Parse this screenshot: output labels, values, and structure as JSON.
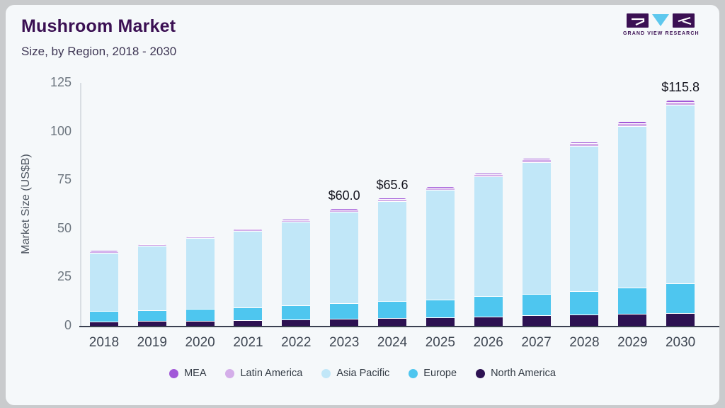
{
  "header": {
    "title": "Mushroom Market",
    "subtitle": "Size, by Region, 2018 - 2030"
  },
  "logo": {
    "name": "GRAND VIEW RESEARCH"
  },
  "colors": {
    "frame_bg": "#c9cbcd",
    "card_bg": "#f5f8fa",
    "title": "#3b1053",
    "subtitle": "#3e3654",
    "axis_tick_text": "#6e7780",
    "x_label_text": "#3f4753",
    "y_axis_line": "#d9dee3",
    "x_axis_line": "#3a4050",
    "annotation_text": "#14141e",
    "legend_text": "#333b45",
    "logo_purple": "#3b1053",
    "logo_blue": "#5ec8ee"
  },
  "chart_data": {
    "type": "bar",
    "stacked": true,
    "title": "Mushroom Market Size, by Region, 2018 - 2030",
    "xlabel": "",
    "ylabel": "Market Size (US$B)",
    "ylim": [
      0,
      125
    ],
    "yticks": [
      0,
      25,
      50,
      75,
      100,
      125
    ],
    "grid": false,
    "legend_position": "bottom",
    "categories": [
      "2018",
      "2019",
      "2020",
      "2021",
      "2022",
      "2023",
      "2024",
      "2025",
      "2026",
      "2027",
      "2028",
      "2029",
      "2030"
    ],
    "series": [
      {
        "name": "MEA",
        "color": "#a158d8",
        "values": [
          0.2,
          0.2,
          0.2,
          0.2,
          0.3,
          0.3,
          0.3,
          0.4,
          0.4,
          0.5,
          0.5,
          0.6,
          0.6
        ]
      },
      {
        "name": "Latin America",
        "color": "#d4aee9",
        "values": [
          0.6,
          0.7,
          0.7,
          0.8,
          0.8,
          0.9,
          1.0,
          1.0,
          1.1,
          1.2,
          1.3,
          1.5,
          1.4
        ]
      },
      {
        "name": "Asia Pacific",
        "color": "#c1e7f8",
        "values": [
          29.9,
          33.0,
          36.2,
          39.5,
          43.0,
          47.1,
          51.7,
          56.6,
          61.7,
          67.8,
          74.8,
          83.2,
          91.9
        ]
      },
      {
        "name": "Europe",
        "color": "#4ec6ef",
        "values": [
          5.5,
          5.6,
          6.2,
          6.6,
          7.2,
          8.0,
          8.6,
          9.1,
          10.5,
          11.0,
          12.1,
          13.5,
          15.3
        ]
      },
      {
        "name": "North America",
        "color": "#2d1252",
        "values": [
          2.3,
          2.5,
          2.7,
          2.9,
          3.2,
          3.7,
          4.0,
          4.4,
          4.8,
          5.5,
          5.8,
          6.2,
          6.6
        ]
      }
    ],
    "stack_order_bottom_to_top": [
      "North America",
      "Europe",
      "Asia Pacific",
      "Latin America",
      "MEA"
    ],
    "totals": [
      38.5,
      42.0,
      46.0,
      50.0,
      54.5,
      60.0,
      65.6,
      71.5,
      78.5,
      86.0,
      94.5,
      105.0,
      115.8
    ],
    "annotations": [
      {
        "category": "2023",
        "text": "$60.0"
      },
      {
        "category": "2024",
        "text": "$65.6"
      },
      {
        "category": "2030",
        "text": "$115.8"
      }
    ]
  }
}
